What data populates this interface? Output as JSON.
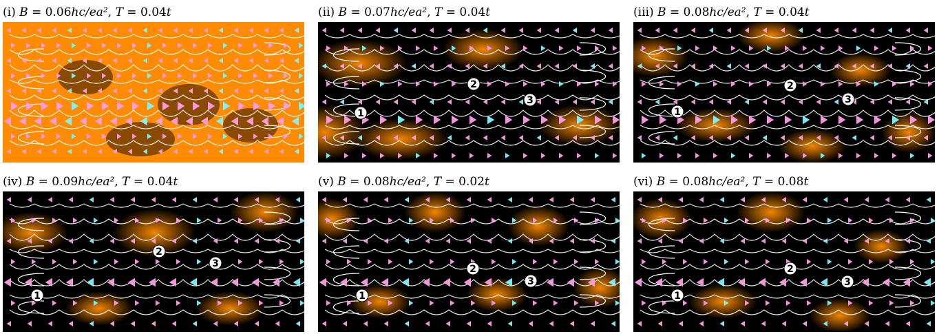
{
  "figure": {
    "panels": [
      {
        "id": "i",
        "roman": "(i)",
        "B": "0.06",
        "T": "0.04",
        "markers": []
      },
      {
        "id": "ii",
        "roman": "(ii)",
        "B": "0.07",
        "T": "0.04",
        "markers": [
          "1",
          "2",
          "3"
        ]
      },
      {
        "id": "iii",
        "roman": "(iii)",
        "B": "0.08",
        "T": "0.04",
        "markers": [
          "1",
          "2",
          "3"
        ]
      },
      {
        "id": "iv",
        "roman": "(iv)",
        "B": "0.09",
        "T": "0.04",
        "markers": [
          "1",
          "2",
          "3"
        ]
      },
      {
        "id": "v",
        "roman": "(v)",
        "B": "0.08",
        "T": "0.02",
        "markers": [
          "1",
          "2",
          "3"
        ]
      },
      {
        "id": "vi",
        "roman": "(vi)",
        "B": "0.08",
        "T": "0.08",
        "markers": [
          "1",
          "2",
          "3"
        ]
      }
    ],
    "b_symbol": "B",
    "b_unit": "hc/ea²",
    "t_symbol": "T",
    "t_unit": "t",
    "colors": {
      "background": "#000000",
      "density": "#ff8c00",
      "streamline": "#ffffff",
      "arrow_pink": "#ff9de8",
      "arrow_cyan": "#7ef4ff",
      "marker_bg": "#ffffff",
      "marker_text": "#000000"
    }
  }
}
